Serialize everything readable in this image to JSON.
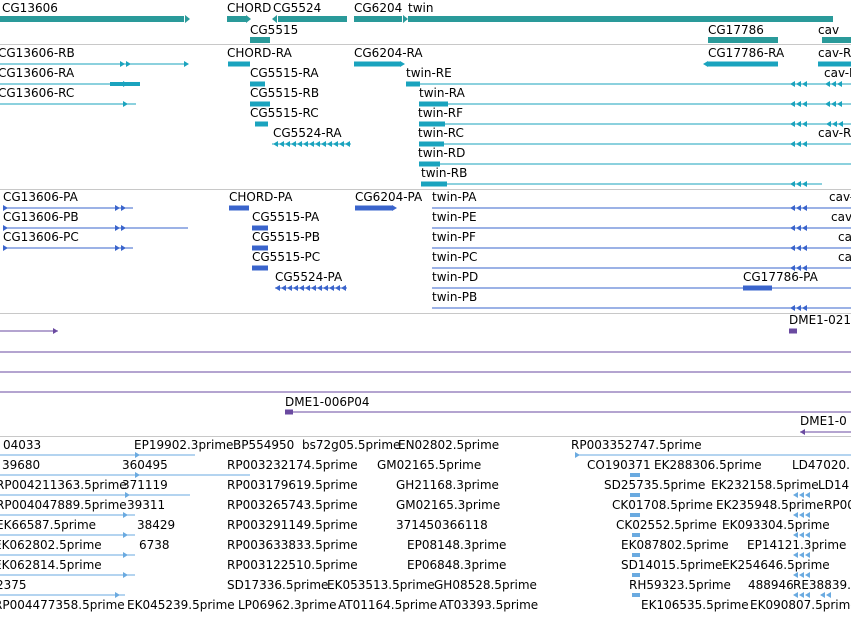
{
  "colors": {
    "gene": "#2a9a9a",
    "transcript": "#1aa3be",
    "protein": "#3a64cc",
    "insertion": "#6a4aa0",
    "est": "#6aaae0",
    "separator": "#c8c8c8"
  },
  "gene_track": {
    "labels": [
      "CG13606",
      "CHORD",
      "CG5524",
      "CG6204",
      "twin",
      "CG5515",
      "CG17786",
      "cav"
    ]
  },
  "transcript_track": {
    "labels": [
      "CG13606-RB",
      "CG13606-RA",
      "CG13606-RC",
      "CHORD-RA",
      "CG5515-RA",
      "CG5515-RB",
      "CG5515-RC",
      "CG5524-RA",
      "CG6204-RA",
      "twin-RE",
      "twin-RA",
      "twin-RF",
      "twin-RC",
      "twin-RD",
      "twin-RB",
      "CG17786-RA",
      "cav-RB",
      "cav-RA",
      "cav-RC"
    ]
  },
  "protein_track": {
    "labels": [
      "CG13606-PA",
      "CG13606-PB",
      "CG13606-PC",
      "CHORD-PA",
      "CG5515-PA",
      "CG5515-PB",
      "CG5515-PC",
      "CG5524-PA",
      "CG6204-PA",
      "twin-PA",
      "twin-PE",
      "twin-PF",
      "twin-PC",
      "twin-PD",
      "twin-PB",
      "CG17786-PA",
      "cav-PA",
      "cav-PB",
      "cav-PC",
      "cav-PD"
    ]
  },
  "insertion_track": {
    "labels": [
      "DME1-021",
      "DME1-006P04",
      "DME1-0"
    ]
  },
  "est_track": {
    "labels": [
      "04033",
      "EP19902.3prime",
      "BP554950",
      "bs72g05.5prime",
      "EN02802.5prime",
      "RP003352747.5prime",
      "39680",
      "360495",
      "RP003232174.5prime",
      "GM02165.5prime",
      "CO190371",
      "EK288306.5prime",
      "LD47020.",
      "RP004211363.5prime",
      "371119",
      "RP003179619.5prime",
      "GH21168.3prime",
      "SD25735.5prime",
      "EK232158.5prime",
      "LD14",
      "RP004047889.5prime",
      "39311",
      "RP003265743.5prime",
      "GM02165.3prime",
      "CK01708.5prime",
      "EK235948.5prime",
      "RP00",
      "EK66587.5prime",
      "38429",
      "RP003291149.5prime",
      "371450",
      "366118",
      "CK02552.5prime",
      "EK093304.5prime",
      "EK062802.5prime",
      "6738",
      "RP003633833.5prime",
      "EP08148.3prime",
      "EK087802.5prime",
      "EP14121.3prime",
      "EK062814.5prime",
      "RP003122510.5prime",
      "EP06848.3prime",
      "SD14015.5prime",
      "EK254646.5prime",
      "2375",
      "SD17336.5prime",
      "EK053513.5prime",
      "GH08528.5prime",
      "RH59323.5prime",
      "488946",
      "RE38839.",
      "RP004477358.5prime",
      "EK045239.5prime",
      "LP06962.3prime",
      "AT01164.5prime",
      "AT03393.5prime",
      "EK106535.5prime",
      "EK090807.5prime"
    ]
  }
}
